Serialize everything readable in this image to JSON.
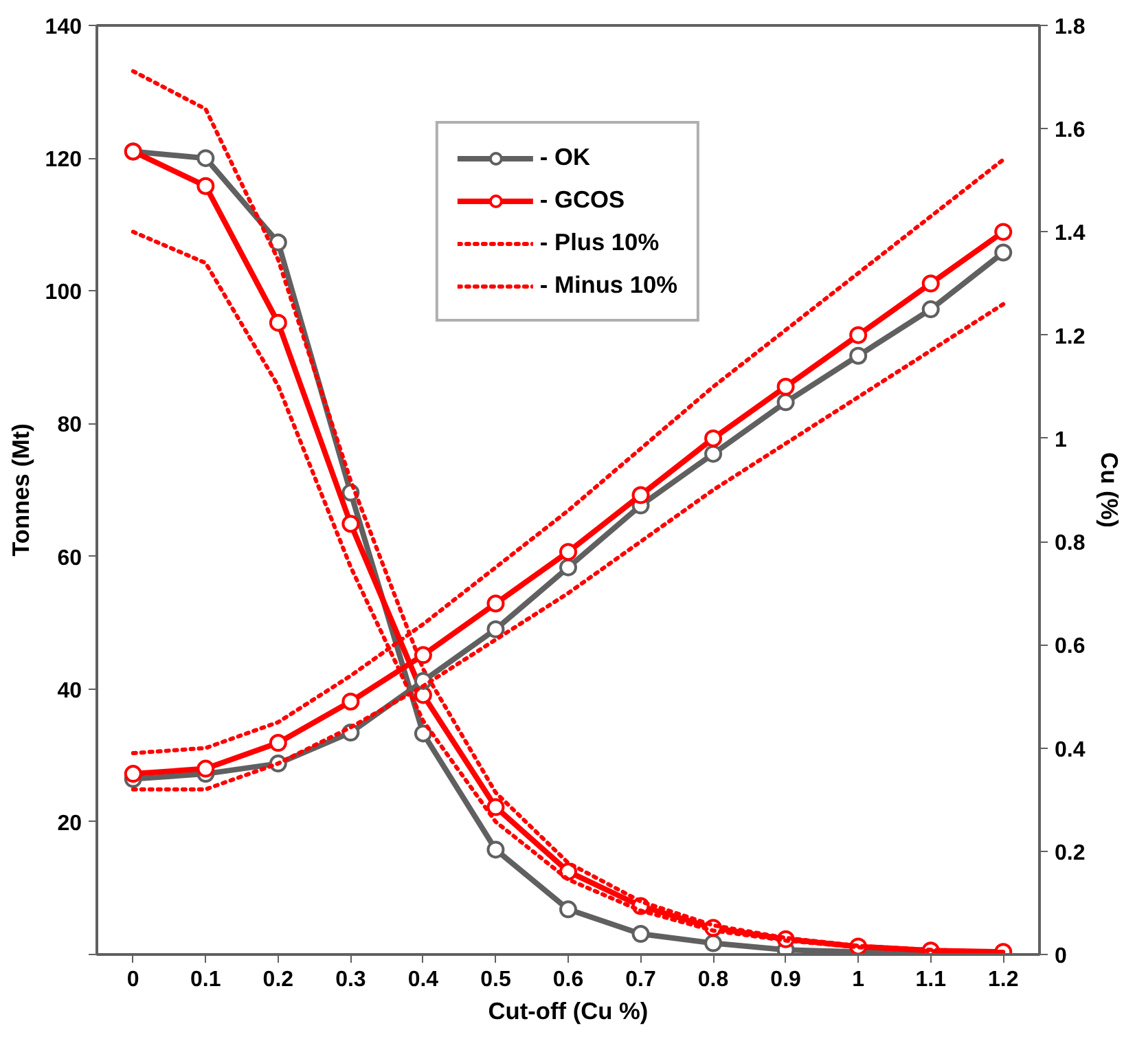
{
  "chart_data": {
    "type": "line",
    "xlabel": "Cut-off (Cu %)",
    "ylabel": "Tonnes (Mt)",
    "y2label": "Cu (%)",
    "categories": [
      "0",
      "0.1",
      "0.2",
      "0.3",
      "0.4",
      "0.5",
      "0.6",
      "0.7",
      "0.8",
      "0.9",
      "1",
      "1.1",
      "1.2"
    ],
    "ylim": [
      0,
      140
    ],
    "yticks": [
      {
        "value": 0,
        "label": null
      },
      20,
      40,
      60,
      80,
      100,
      120,
      140
    ],
    "y2lim": [
      0,
      1.8
    ],
    "y2ticks": [
      0,
      0.2,
      0.4,
      0.6,
      0.8,
      1,
      1.2,
      1.4,
      1.6,
      1.8
    ],
    "grid": false,
    "legend": "top",
    "marker": "circle",
    "line_style": "solid",
    "series": [
      {
        "name": "- OK",
        "color": "#606060",
        "values": [
          121,
          120,
          107.3,
          69.6,
          33.3,
          15.8,
          6.8,
          3.1,
          1.7,
          0.7,
          0.4,
          0.2,
          0.1
        ]
      },
      {
        "name": "- GCOS",
        "color": "#ff0000",
        "values": [
          121,
          115.8,
          95.2,
          64.9,
          39.1,
          22.2,
          12.5,
          7.3,
          4.0,
          2.3,
          1.2,
          0.6,
          0.4
        ]
      },
      {
        "name": "- Plus 10%",
        "color": "#ff0000",
        "marker": "none",
        "line_style": "dotted",
        "values": [
          133.1,
          127.4,
          104.7,
          71.4,
          43.0,
          24.4,
          13.8,
          8.0,
          4.4,
          2.5,
          1.3,
          0.7,
          0.4
        ]
      },
      {
        "name": "- Minus 10%",
        "color": "#ff0000",
        "marker": "none",
        "line_style": "dotted",
        "values": [
          108.9,
          104.2,
          85.7,
          58.4,
          35.2,
          20.0,
          11.3,
          6.6,
          3.6,
          2.1,
          1.1,
          0.5,
          0.4
        ]
      },
      {
        "color": "#606060",
        "axis": "y2",
        "values": [
          0.34,
          0.35,
          0.37,
          0.43,
          0.53,
          0.63,
          0.75,
          0.87,
          0.97,
          1.07,
          1.16,
          1.25,
          1.36
        ]
      },
      {
        "color": "#ff0000",
        "axis": "y2",
        "values": [
          0.35,
          0.36,
          0.41,
          0.49,
          0.58,
          0.68,
          0.78,
          0.89,
          1.0,
          1.1,
          1.2,
          1.3,
          1.4
        ]
      },
      {
        "color": "#ff0000",
        "axis": "y2",
        "marker": "none",
        "line_style": "dotted",
        "values": [
          0.39,
          0.4,
          0.45,
          0.54,
          0.64,
          0.75,
          0.86,
          0.98,
          1.1,
          1.21,
          1.32,
          1.43,
          1.54
        ]
      },
      {
        "color": "#ff0000",
        "axis": "y2",
        "marker": "none",
        "line_style": "dotted",
        "values": [
          0.32,
          0.32,
          0.37,
          0.44,
          0.52,
          0.61,
          0.7,
          0.8,
          0.9,
          0.99,
          1.08,
          1.17,
          1.26
        ]
      }
    ]
  }
}
